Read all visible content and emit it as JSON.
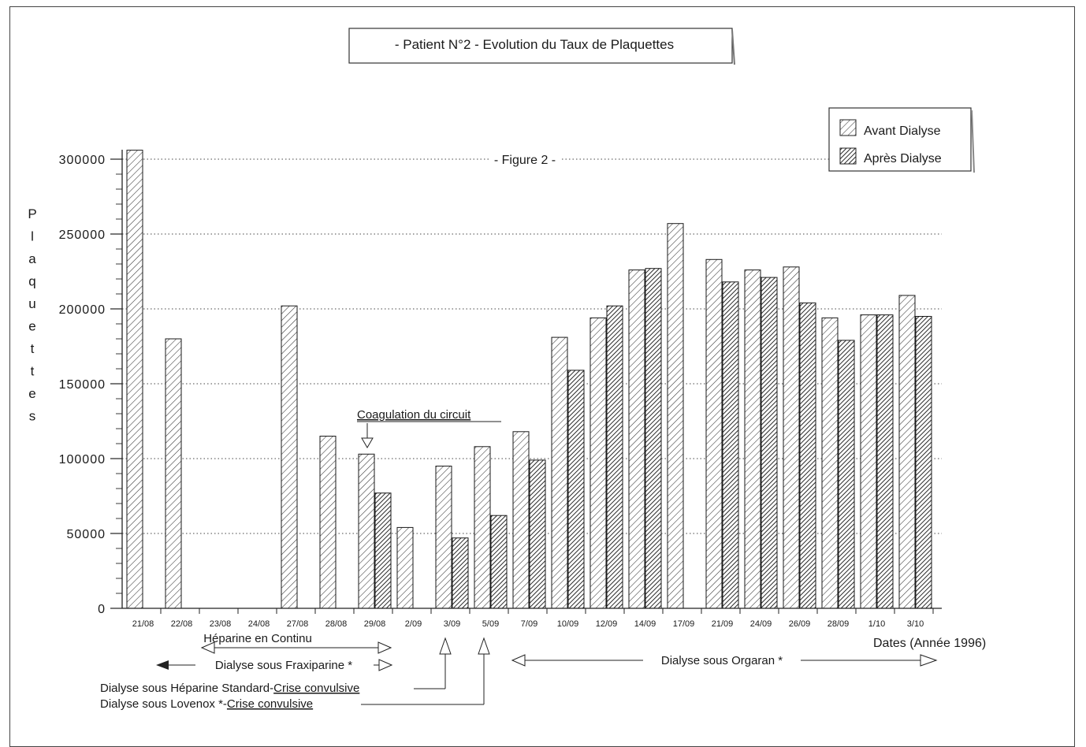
{
  "chart_data": {
    "type": "bar",
    "title": "- Patient N°2 - Evolution du Taux  de Plaquettes",
    "subtitle": "- Figure 2 -",
    "ylabel": "Plaquettes",
    "xlabel": "Dates  (Année  1996)",
    "ylim": [
      0,
      300000
    ],
    "y_ticks": [
      0,
      50000,
      100000,
      150000,
      200000,
      250000,
      300000
    ],
    "grid": "horizontal dotted",
    "legend_position": "top-right",
    "categories": [
      "21/08",
      "22/08",
      "23/08",
      "24/08",
      "27/08",
      "28/08",
      "29/08",
      "2/09",
      "3/09",
      "5/09",
      "7/09",
      "10/09",
      "12/09",
      "14/09",
      "17/09",
      "21/09",
      "24/09",
      "26/09",
      "28/09",
      "1/10",
      "3/10"
    ],
    "series": [
      {
        "name": "Avant  Dialyse",
        "pattern": "light-hatch",
        "values": [
          306000,
          180000,
          null,
          null,
          202000,
          115000,
          103000,
          54000,
          95000,
          108000,
          118000,
          181000,
          194000,
          226000,
          257000,
          233000,
          226000,
          228000,
          194000,
          196000,
          209000
        ]
      },
      {
        "name": "Après  Dialyse",
        "pattern": "dark-hatch",
        "values": [
          null,
          null,
          null,
          null,
          null,
          null,
          77000,
          null,
          47000,
          62000,
          99000,
          159000,
          202000,
          227000,
          null,
          218000,
          221000,
          204000,
          179000,
          196000,
          195000
        ]
      }
    ],
    "annotations": [
      {
        "text": "Coagulation du circuit",
        "category": "29/08"
      },
      {
        "text": "Héparine en Continu",
        "from": "23/08",
        "to": "29/08"
      },
      {
        "text": "Dialyse sous Fraxiparine *",
        "from": "22/08",
        "to": "29/08"
      },
      {
        "text": "Dialyse sous Orgaran *",
        "from": "7/09",
        "to": "3/10"
      },
      {
        "text_main": "Dialyse sous Héparine Standard-",
        "text_underlined": "Crise convulsive",
        "category": "3/09"
      },
      {
        "text_main": "Dialyse sous Lovenox *-",
        "text_underlined": "Crise convulsive",
        "category": "5/09"
      }
    ]
  }
}
